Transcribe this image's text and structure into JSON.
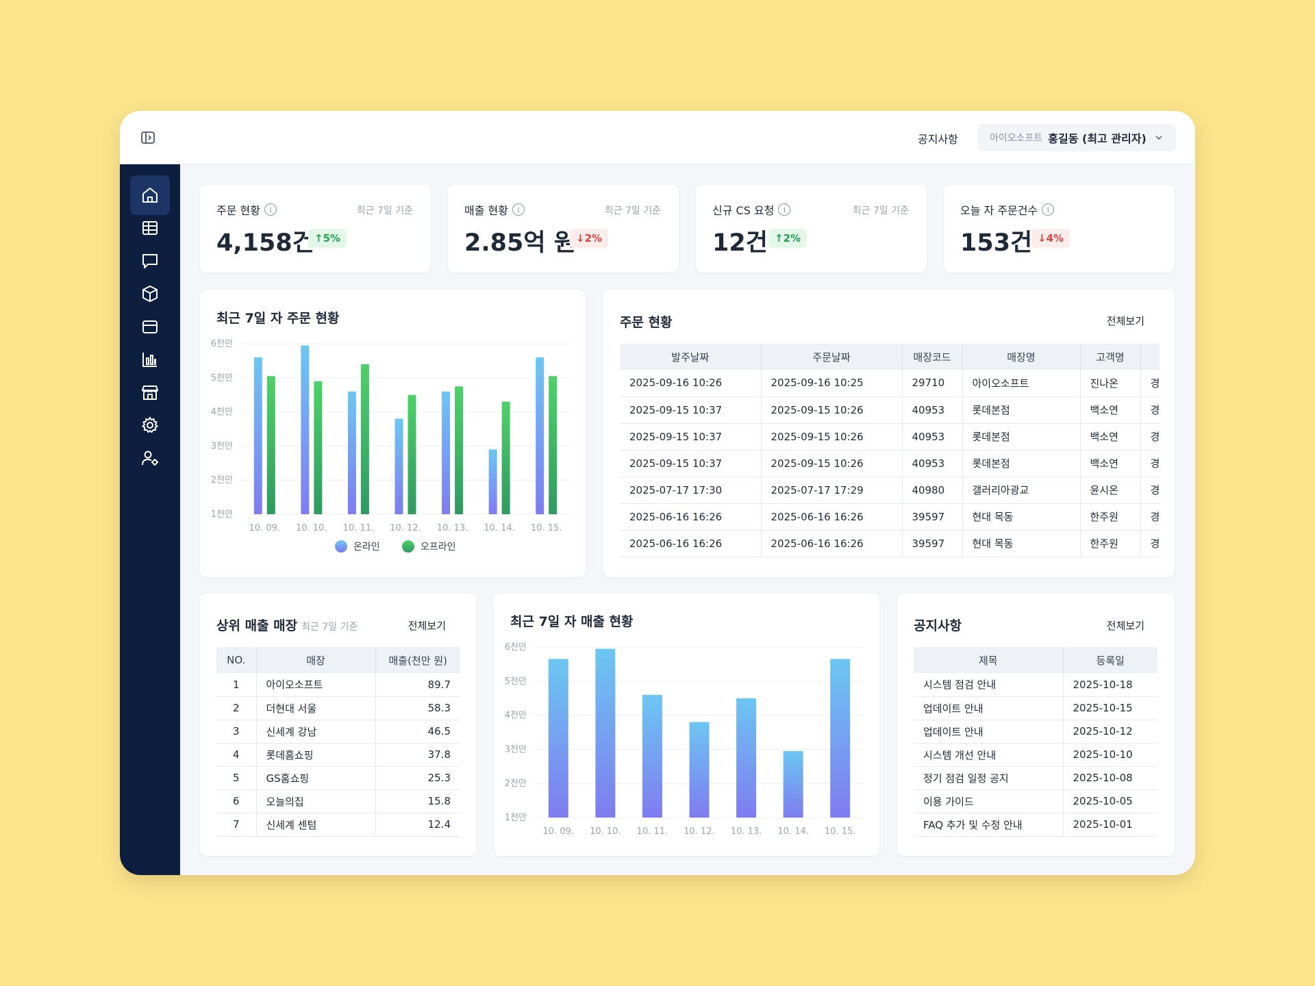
{
  "header": {
    "notice_link": "공지사항",
    "user_company": "아이오소프트",
    "user_name": "홍길동 (최고 관리자)"
  },
  "sidebar": {
    "items": [
      {
        "icon": "home-icon",
        "active": true
      },
      {
        "icon": "table-icon",
        "active": false
      },
      {
        "icon": "chat-icon",
        "active": false
      },
      {
        "icon": "box-icon",
        "active": false
      },
      {
        "icon": "package-icon",
        "active": false
      },
      {
        "icon": "bar-chart-icon",
        "active": false
      },
      {
        "icon": "store-icon",
        "active": false
      },
      {
        "icon": "gear-icon",
        "active": false
      },
      {
        "icon": "user-settings-icon",
        "active": false
      }
    ]
  },
  "stats": [
    {
      "title": "주문 현황",
      "period": "최근 7일 기준",
      "value": "4,158건",
      "change": "↑5%",
      "direction": "up"
    },
    {
      "title": "매출 현황",
      "period": "최근 7일 기준",
      "value": "2.85억 원",
      "change": "↓2%",
      "direction": "down"
    },
    {
      "title": "신규 CS 요청",
      "period": "최근 7일 기준",
      "value": "12건",
      "change": "↑2%",
      "direction": "up"
    },
    {
      "title": "오늘 자 주문건수",
      "period": "",
      "value": "153건",
      "change": "↓4%",
      "direction": "down"
    }
  ],
  "order_chart": {
    "title": "최근 7일 자 주문 현황",
    "legend": [
      "온라인",
      "오프라인"
    ]
  },
  "orders": {
    "title": "주문 현황",
    "view_all": "전체보기",
    "columns": [
      "발주날짜",
      "주문날짜",
      "매장코드",
      "매장명",
      "고객명",
      ""
    ],
    "rows": [
      [
        "2025-09-16 10:26",
        "2025-09-16 10:25",
        "29710",
        "아이오소프트",
        "진나온",
        "경"
      ],
      [
        "2025-09-15 10:37",
        "2025-09-15 10:26",
        "40953",
        "롯데본점",
        "백소연",
        "경"
      ],
      [
        "2025-09-15 10:37",
        "2025-09-15 10:26",
        "40953",
        "롯데본점",
        "백소연",
        "경"
      ],
      [
        "2025-09-15 10:37",
        "2025-09-15 10:26",
        "40953",
        "롯데본점",
        "백소연",
        "경"
      ],
      [
        "2025-07-17 17:30",
        "2025-07-17 17:29",
        "40980",
        "갤러리아광교",
        "윤시온",
        "경"
      ],
      [
        "2025-06-16 16:26",
        "2025-06-16 16:26",
        "39597",
        "현대 목동",
        "한주원",
        "경"
      ],
      [
        "2025-06-16 16:26",
        "2025-06-16 16:26",
        "39597",
        "현대 목동",
        "한주원",
        "경"
      ]
    ]
  },
  "top_stores": {
    "title": "상위 매출 매장",
    "subtitle": "최근 7일 기준",
    "view_all": "전체보기",
    "columns": [
      "NO.",
      "매장",
      "매출(천만 원)"
    ],
    "rows": [
      [
        "1",
        "아이오소프트",
        "89.7"
      ],
      [
        "2",
        "더현대 서울",
        "58.3"
      ],
      [
        "3",
        "신세계 강남",
        "46.5"
      ],
      [
        "4",
        "롯데홈쇼핑",
        "37.8"
      ],
      [
        "5",
        "GS홈쇼핑",
        "25.3"
      ],
      [
        "6",
        "오늘의집",
        "15.8"
      ],
      [
        "7",
        "신세계 센텀",
        "12.4"
      ]
    ]
  },
  "sales_chart": {
    "title": "최근 7일 자 매출 현황"
  },
  "notices": {
    "title": "공지사항",
    "view_all": "전체보기",
    "columns": [
      "제목",
      "등록일"
    ],
    "rows": [
      [
        "시스템 점검 안내",
        "2025-10-18"
      ],
      [
        "업데이트 안내",
        "2025-10-15"
      ],
      [
        "업데이트 안내",
        "2025-10-12"
      ],
      [
        "시스템 개선 안내",
        "2025-10-10"
      ],
      [
        "정기 점검 일정 공지",
        "2025-10-08"
      ],
      [
        "이용 가이드",
        "2025-10-05"
      ],
      [
        "FAQ 추가 및 수정 안내",
        "2025-10-01"
      ]
    ]
  },
  "colors": {
    "sidebar": "#0e1e3f",
    "online_top": "#6cc6f2",
    "online_bottom": "#7f7cf0",
    "offline_top": "#4fd16a",
    "offline_bottom": "#2f9a62",
    "up": "#22a052",
    "down": "#e0443e"
  },
  "chart_data": [
    {
      "type": "bar",
      "title": "최근 7일 자 주문 현황",
      "categories": [
        "10. 09.",
        "10. 10.",
        "10. 11.",
        "10. 12.",
        "10. 13.",
        "10. 14.",
        "10. 15."
      ],
      "y_ticks": [
        "1천만",
        "2천만",
        "3천만",
        "4천만",
        "5천만",
        "6천만"
      ],
      "ylim": [
        1,
        6
      ],
      "unit": "천만",
      "series": [
        {
          "name": "온라인",
          "values": [
            5.6,
            5.95,
            4.6,
            3.8,
            4.6,
            2.9,
            5.6
          ]
        },
        {
          "name": "오프라인",
          "values": [
            5.05,
            4.9,
            5.4,
            4.5,
            4.75,
            4.3,
            5.05
          ]
        }
      ],
      "legend": "bottom",
      "grid": true
    },
    {
      "type": "bar",
      "title": "최근 7일 자 매출 현황",
      "categories": [
        "10. 09.",
        "10. 10.",
        "10. 11.",
        "10. 12.",
        "10. 13.",
        "10. 14.",
        "10. 15."
      ],
      "y_ticks": [
        "1천만",
        "2천만",
        "3천만",
        "4천만",
        "5천만",
        "6천만"
      ],
      "ylim": [
        1,
        6
      ],
      "unit": "천만",
      "values": [
        5.65,
        5.95,
        4.6,
        3.8,
        4.5,
        2.95,
        5.65
      ],
      "grid": true
    }
  ]
}
